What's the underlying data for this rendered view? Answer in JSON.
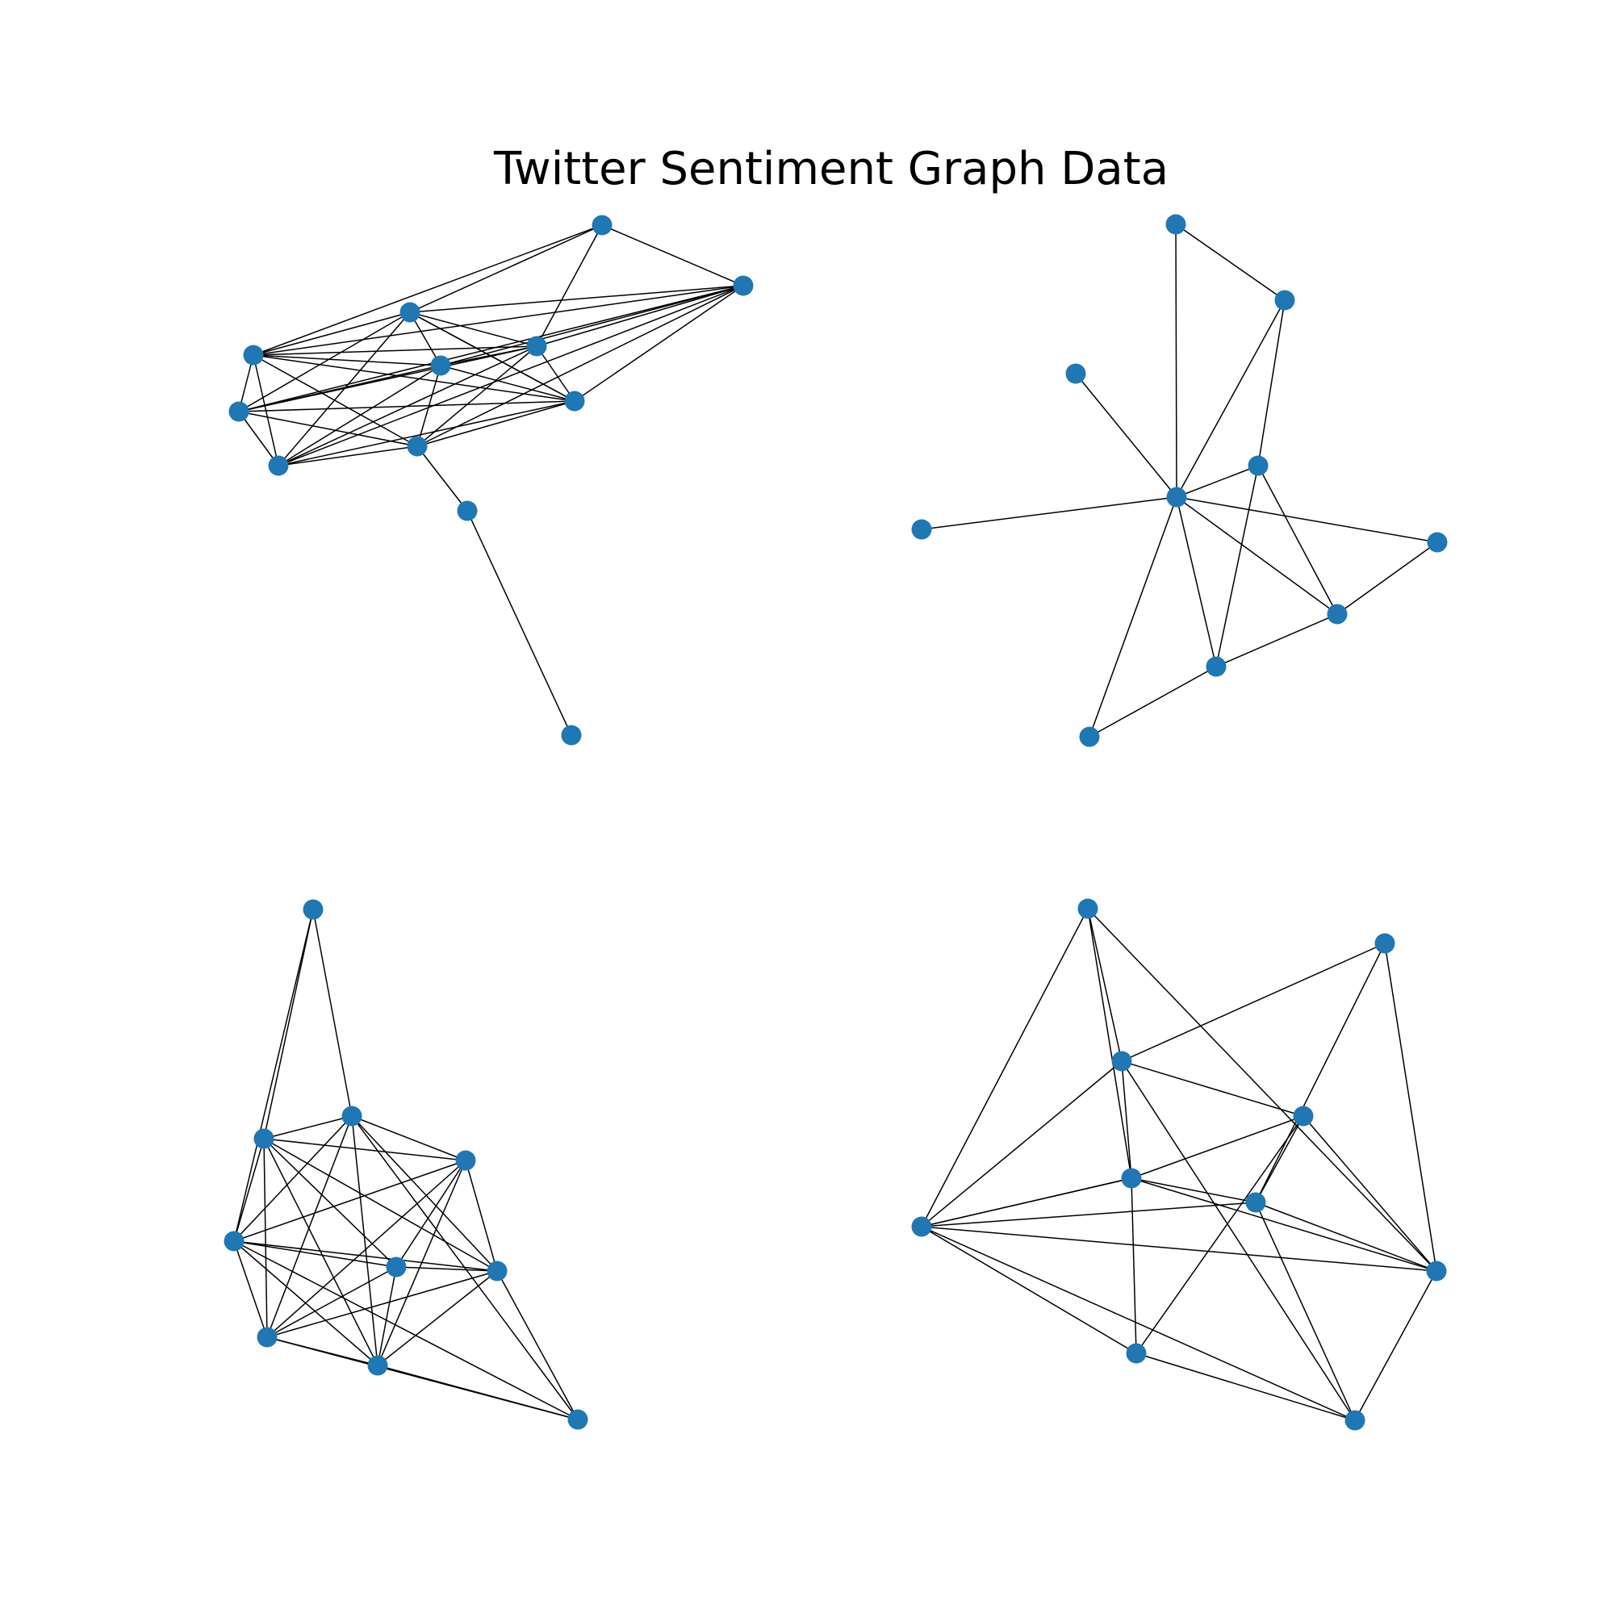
{
  "title": "Twitter Sentiment Graph Data",
  "style": {
    "node_color": "#1f77b4",
    "edge_color": "#000000"
  },
  "graphs": [
    {
      "id": "top-left",
      "node_count": 12,
      "edges": [
        [
          0,
          1
        ],
        [
          0,
          2
        ],
        [
          0,
          3
        ],
        [
          0,
          4
        ],
        [
          1,
          2
        ],
        [
          1,
          5
        ],
        [
          1,
          6
        ],
        [
          1,
          3
        ],
        [
          1,
          8
        ],
        [
          1,
          4
        ],
        [
          1,
          9
        ],
        [
          1,
          7
        ],
        [
          2,
          5
        ],
        [
          2,
          4
        ],
        [
          2,
          6
        ],
        [
          2,
          7
        ],
        [
          2,
          8
        ],
        [
          2,
          3
        ],
        [
          5,
          3
        ],
        [
          5,
          6
        ],
        [
          5,
          7
        ],
        [
          5,
          8
        ],
        [
          5,
          9
        ],
        [
          5,
          4
        ],
        [
          6,
          4
        ],
        [
          6,
          9
        ],
        [
          6,
          7
        ],
        [
          6,
          3
        ],
        [
          6,
          8
        ],
        [
          6,
          2
        ],
        [
          4,
          3
        ],
        [
          4,
          7
        ],
        [
          4,
          8
        ],
        [
          4,
          9
        ],
        [
          3,
          9
        ],
        [
          3,
          8
        ],
        [
          3,
          7
        ],
        [
          9,
          8
        ],
        [
          9,
          10
        ],
        [
          7,
          9
        ],
        [
          7,
          8
        ],
        [
          10,
          11
        ]
      ]
    },
    {
      "id": "top-right",
      "node_count": 10,
      "edges": [
        [
          0,
          1
        ],
        [
          0,
          5
        ],
        [
          1,
          5
        ],
        [
          1,
          4
        ],
        [
          2,
          5
        ],
        [
          3,
          5
        ],
        [
          5,
          4
        ],
        [
          5,
          6
        ],
        [
          5,
          7
        ],
        [
          5,
          8
        ],
        [
          5,
          9
        ],
        [
          4,
          7
        ],
        [
          4,
          8
        ],
        [
          6,
          7
        ],
        [
          7,
          8
        ],
        [
          8,
          9
        ]
      ]
    },
    {
      "id": "bottom-left",
      "node_count": 10,
      "edges": [
        [
          0,
          1
        ],
        [
          0,
          2
        ],
        [
          0,
          3
        ],
        [
          1,
          2
        ],
        [
          1,
          3
        ],
        [
          1,
          4
        ],
        [
          1,
          5
        ],
        [
          1,
          6
        ],
        [
          1,
          7
        ],
        [
          1,
          8
        ],
        [
          2,
          3
        ],
        [
          2,
          4
        ],
        [
          2,
          6
        ],
        [
          2,
          7
        ],
        [
          2,
          8
        ],
        [
          2,
          9
        ],
        [
          3,
          4
        ],
        [
          3,
          5
        ],
        [
          3,
          6
        ],
        [
          3,
          7
        ],
        [
          3,
          8
        ],
        [
          3,
          9
        ],
        [
          4,
          5
        ],
        [
          4,
          6
        ],
        [
          4,
          7
        ],
        [
          4,
          8
        ],
        [
          5,
          6
        ],
        [
          5,
          7
        ],
        [
          5,
          8
        ],
        [
          6,
          7
        ],
        [
          6,
          8
        ],
        [
          6,
          9
        ],
        [
          7,
          8
        ],
        [
          7,
          9
        ],
        [
          8,
          9
        ]
      ]
    },
    {
      "id": "bottom-right",
      "node_count": 10,
      "edges": [
        [
          0,
          2
        ],
        [
          0,
          6
        ],
        [
          0,
          4
        ],
        [
          0,
          7
        ],
        [
          1,
          2
        ],
        [
          1,
          5
        ],
        [
          1,
          7
        ],
        [
          2,
          3
        ],
        [
          2,
          4
        ],
        [
          2,
          6
        ],
        [
          2,
          9
        ],
        [
          3,
          4
        ],
        [
          3,
          5
        ],
        [
          3,
          7
        ],
        [
          3,
          8
        ],
        [
          4,
          5
        ],
        [
          4,
          6
        ],
        [
          4,
          7
        ],
        [
          4,
          8
        ],
        [
          5,
          6
        ],
        [
          5,
          7
        ],
        [
          5,
          9
        ],
        [
          6,
          7
        ],
        [
          6,
          8
        ],
        [
          6,
          9
        ],
        [
          7,
          9
        ],
        [
          8,
          9
        ],
        [
          6,
          4
        ]
      ]
    }
  ]
}
